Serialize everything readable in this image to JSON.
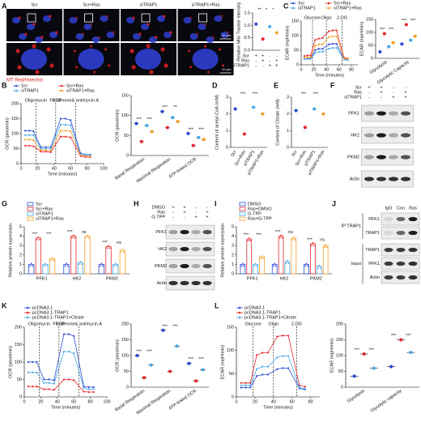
{
  "panel_labels": [
    "A",
    "C",
    "B",
    "D",
    "E",
    "F",
    "G",
    "H",
    "I",
    "J",
    "K",
    "L"
  ],
  "microscopy": {
    "columns": [
      "Scr",
      "Scr+Ras",
      "siTRAP1",
      "siTRAP1+Ras"
    ],
    "scale_bars": [
      "20 µm",
      "10 µm"
    ],
    "stain": "MT Red/Hoechst"
  },
  "blots": [
    {
      "conditions": [
        {
          "name": "Scr",
          "signs": [
            "+",
            "+",
            "-",
            "-"
          ]
        },
        {
          "name": "Ras",
          "signs": [
            "-",
            "+",
            "-",
            "+"
          ]
        },
        {
          "name": "siTRAP1",
          "signs": [
            "-",
            "-",
            "+",
            "+"
          ]
        }
      ],
      "proteins": [
        "PFK1",
        "HK2",
        "PKM2",
        "Actin"
      ]
    },
    {
      "conditions": [
        {
          "name": "DMSO",
          "signs": [
            "+",
            "+",
            "-",
            "-"
          ]
        },
        {
          "name": "Ras",
          "signs": [
            "-",
            "+",
            "-",
            "+"
          ]
        },
        {
          "name": "G-TPP",
          "signs": [
            "-",
            "-",
            "+",
            "+"
          ]
        }
      ],
      "proteins": [
        "PFK1",
        "HK2",
        "PKM2",
        "Actin"
      ]
    },
    {
      "columns": [
        "IgG",
        "Con",
        "Ras"
      ],
      "groups": [
        {
          "name": "IP:TRAP1",
          "proteins": [
            "PFK1",
            "TRAP1"
          ]
        },
        {
          "name": "Input",
          "proteins": [
            "TRAP1",
            "PFK1",
            "Actin"
          ]
        }
      ]
    }
  ],
  "chart_data": [
    {
      "type": "dot",
      "ylabel": "Relative Mito Tracker intensity",
      "ylim": [
        0,
        1.5
      ],
      "yticks": [
        {
          "value": 0,
          "label": "0.0"
        },
        {
          "value": 0.5,
          "label": "0.5"
        },
        {
          "value": 1,
          "label": "1.0"
        },
        {
          "value": 1.5,
          "label": "1.5"
        }
      ],
      "values": [
        1.05,
        0.45,
        0.95,
        0.7
      ],
      "colors": [
        "#2a4bd7",
        "#e8262a",
        "#4aa8e8",
        "#f4a12a"
      ],
      "significance": [
        "**",
        "*",
        "*"
      ],
      "conditions": [
        {
          "name": "Scr",
          "signs": [
            "+",
            "+",
            "-",
            "-"
          ]
        },
        {
          "name": "Ras",
          "signs": [
            "-",
            "+",
            "-",
            "+"
          ]
        },
        {
          "name": "siTRAP1",
          "signs": [
            "-",
            "-",
            "+",
            "+"
          ]
        }
      ]
    },
    {
      "type": "line",
      "ylabel": "ECAR (mpH/min)",
      "xlabel": "Time (minutes)",
      "xlim": [
        0,
        90
      ],
      "xticks": [
        0,
        20,
        40,
        60,
        80
      ],
      "ylim": [
        0,
        150
      ],
      "yticks": [
        0,
        50,
        100,
        150
      ],
      "injections": [
        {
          "label": "Glucose",
          "x": 18
        },
        {
          "label": "Oligo",
          "x": 40
        },
        {
          "label": "2-DG",
          "x": 65
        }
      ],
      "x": [
        5,
        10,
        15,
        22,
        28,
        34,
        44,
        50,
        56,
        68,
        74
      ],
      "series": [
        {
          "name": "Scr",
          "color": "#2a4bd7",
          "values": [
            20,
            22,
            22,
            50,
            55,
            55,
            70,
            72,
            72,
            20,
            18
          ]
        },
        {
          "name": "Scr+Ras",
          "color": "#e8262a",
          "values": [
            30,
            32,
            32,
            85,
            90,
            92,
            115,
            118,
            118,
            25,
            22
          ]
        },
        {
          "name": "siTRAP1",
          "color": "#4aa8e8",
          "values": [
            20,
            20,
            20,
            40,
            45,
            45,
            55,
            58,
            58,
            18,
            16
          ]
        },
        {
          "name": "siTRAP1+Ras",
          "color": "#f4a12a",
          "values": [
            25,
            25,
            25,
            65,
            70,
            70,
            95,
            98,
            98,
            22,
            20
          ]
        }
      ]
    },
    {
      "type": "dot",
      "ylabel": "ECAR (mpH/min)",
      "ylim": [
        0,
        150
      ],
      "yticks": [
        0,
        50,
        100,
        150
      ],
      "categories": [
        "Glycolysis",
        "Glycolytic Capacity"
      ],
      "series": [
        {
          "color": "#2a4bd7",
          "values": [
            25,
            55
          ]
        },
        {
          "color": "#e8262a",
          "values": [
            95,
            130
          ]
        },
        {
          "color": "#4aa8e8",
          "values": [
            45,
            70
          ]
        },
        {
          "color": "#f4a12a",
          "values": [
            60,
            85
          ]
        }
      ],
      "significance": [
        [
          "***",
          "***"
        ],
        [
          "***",
          "***"
        ]
      ]
    },
    {
      "type": "line",
      "ylabel": "OCR (pmol/min)",
      "xlabel": "Time (minutes)",
      "xlim": [
        0,
        100
      ],
      "xticks": [
        0,
        20,
        40,
        60,
        80,
        100
      ],
      "ylim": [
        0,
        200
      ],
      "yticks": [
        0,
        50,
        100,
        150,
        200
      ],
      "injections": [
        {
          "label": "Oligomycin",
          "x": 18
        },
        {
          "label": "FCCP",
          "x": 42
        },
        {
          "label": "Rotenone& antimycin A",
          "x": 66
        }
      ],
      "x": [
        5,
        10,
        15,
        24,
        30,
        36,
        48,
        54,
        60,
        72,
        78,
        84
      ],
      "series": [
        {
          "name": "Scr",
          "color": "#2a4bd7",
          "values": [
            110,
            110,
            108,
            55,
            55,
            55,
            150,
            150,
            145,
            35,
            30,
            30
          ]
        },
        {
          "name": "Scr+Ras",
          "color": "#e8262a",
          "values": [
            60,
            60,
            58,
            40,
            40,
            38,
            90,
            90,
            88,
            25,
            22,
            22
          ]
        },
        {
          "name": "siTRAP1",
          "color": "#4aa8e8",
          "values": [
            95,
            95,
            95,
            50,
            50,
            50,
            130,
            130,
            128,
            30,
            28,
            28
          ]
        },
        {
          "name": "siTRAP1+Ras",
          "color": "#f4a12a",
          "values": [
            80,
            80,
            78,
            45,
            45,
            44,
            110,
            110,
            108,
            28,
            25,
            25
          ]
        }
      ]
    },
    {
      "type": "dot",
      "ylabel": "OCR (pmol/min)",
      "ylim": [
        0,
        150
      ],
      "yticks": [
        0,
        50,
        100,
        150
      ],
      "categories": [
        "Basal Respiration",
        "Maximal Respiration",
        "ATP-linked OCR"
      ],
      "series": [
        {
          "color": "#2a4bd7",
          "values": [
            80,
            110,
            55
          ]
        },
        {
          "color": "#e8262a",
          "values": [
            35,
            70,
            25
          ]
        },
        {
          "color": "#4aa8e8",
          "values": [
            75,
            95,
            45
          ]
        },
        {
          "color": "#f4a12a",
          "values": [
            60,
            85,
            40
          ]
        }
      ],
      "significance": [
        [
          "***",
          "***"
        ],
        [
          "***",
          "**"
        ],
        [
          "***",
          "***"
        ]
      ]
    },
    {
      "type": "dot",
      "ylabel": "Content of acetyl-CoA (mM)",
      "ylim": [
        0,
        3
      ],
      "yticks": [
        0,
        1,
        2,
        3
      ],
      "categories": [
        "Scr",
        "Scr+Ras",
        "siTRAP1",
        "siTRAP1+Ras"
      ],
      "values": [
        2.3,
        0.8,
        2.4,
        2.0
      ],
      "colors": [
        "#2a4bd7",
        "#e8262a",
        "#4aa8e8",
        "#f4a12a"
      ],
      "significance": [
        "***",
        "***"
      ]
    },
    {
      "type": "dot",
      "ylabel": "Content of Citrate (mM)",
      "ylim": [
        0,
        3
      ],
      "yticks": [
        0,
        1,
        2,
        3
      ],
      "categories": [
        "Scr",
        "Scr+Ras",
        "siTRAP1",
        "siTRAP1+Ras"
      ],
      "values": [
        2.2,
        1.2,
        2.3,
        2.0
      ],
      "colors": [
        "#2a4bd7",
        "#e8262a",
        "#4aa8e8",
        "#f4a12a"
      ],
      "significance": [
        "***",
        "***"
      ]
    },
    {
      "type": "bar",
      "ylabel": "Relative protein expression",
      "ylim": [
        0,
        5
      ],
      "yticks": [
        0,
        1,
        2,
        3,
        4,
        5
      ],
      "categories": [
        "PFK1",
        "HK2",
        "PKM2"
      ],
      "series": [
        {
          "name": "Scr",
          "color": "#2a4bd7",
          "values": [
            1,
            1,
            1
          ]
        },
        {
          "name": "Scr+Ras",
          "color": "#e8262a",
          "values": [
            3.8,
            4.0,
            2.9
          ]
        },
        {
          "name": "siTRAP1",
          "color": "#4aa8e8",
          "values": [
            1.0,
            1.2,
            1.0
          ]
        },
        {
          "name": "siTRAP1+Ras",
          "color": "#f4a12a",
          "values": [
            1.6,
            4.0,
            2.5
          ]
        }
      ],
      "significance": [
        [
          "***",
          "***"
        ],
        [
          "***",
          "ns"
        ],
        [
          "***",
          "ns"
        ]
      ]
    },
    {
      "type": "bar",
      "ylabel": "Relative protein expression",
      "ylim": [
        0,
        5
      ],
      "yticks": [
        0,
        1,
        2,
        3,
        4,
        5
      ],
      "categories": [
        "PFK1",
        "HK2",
        "PKM2"
      ],
      "series": [
        {
          "name": "DMSO",
          "color": "#2a4bd7",
          "values": [
            1,
            1,
            1
          ]
        },
        {
          "name": "Ras+DMSO",
          "color": "#e8262a",
          "values": [
            3.7,
            4.0,
            3.2
          ]
        },
        {
          "name": "G-TPP",
          "color": "#4aa8e8",
          "values": [
            1.0,
            1.3,
            0.8
          ]
        },
        {
          "name": "Ras+G-TPP",
          "color": "#f4a12a",
          "values": [
            1.8,
            3.8,
            3.0
          ]
        }
      ],
      "significance": [
        [
          "***",
          "***"
        ],
        [
          "***",
          "ns"
        ],
        [
          "***",
          "ns"
        ]
      ]
    },
    {
      "type": "line",
      "ylabel": "OCR (pmol/min)",
      "xlabel": "Time (minutes)",
      "xlim": [
        0,
        100
      ],
      "xticks": [
        0,
        20,
        40,
        60,
        80,
        100
      ],
      "ylim": [
        0,
        200
      ],
      "yticks": [
        0,
        50,
        100,
        150,
        200
      ],
      "injections": [
        {
          "label": "Oligomycin",
          "x": 18
        },
        {
          "label": "FCCP",
          "x": 42
        },
        {
          "label": "Rotenone& antimycin A",
          "x": 66
        }
      ],
      "x": [
        5,
        10,
        15,
        24,
        30,
        36,
        48,
        54,
        60,
        72,
        78,
        84
      ],
      "series": [
        {
          "name": "pcDNA3.1",
          "color": "#2a4bd7",
          "values": [
            100,
            100,
            100,
            50,
            50,
            48,
            180,
            180,
            175,
            30,
            28,
            28
          ]
        },
        {
          "name": "pcDNA3.1-TRAP1",
          "color": "#e8262a",
          "values": [
            30,
            30,
            30,
            22,
            22,
            20,
            50,
            50,
            48,
            15,
            14,
            14
          ]
        },
        {
          "name": "pcDNA3.1-TRAP1+Citrate",
          "color": "#4aa8e8",
          "values": [
            70,
            70,
            70,
            40,
            40,
            38,
            130,
            130,
            125,
            25,
            22,
            22
          ]
        }
      ]
    },
    {
      "type": "dot",
      "ylabel": "OCR (pmol/min)",
      "ylim": [
        0,
        200
      ],
      "yticks": [
        0,
        50,
        100,
        150,
        200
      ],
      "categories": [
        "Basal Respiration",
        "Maximal Respiration",
        "ATP-linked OCR"
      ],
      "series": [
        {
          "color": "#2a4bd7",
          "values": [
            100,
            180,
            75
          ]
        },
        {
          "color": "#e8262a",
          "values": [
            30,
            50,
            20
          ]
        },
        {
          "color": "#4aa8e8",
          "values": [
            70,
            130,
            55
          ]
        }
      ],
      "significance": [
        [
          "***",
          "***"
        ],
        [
          "***",
          "***"
        ],
        [
          "***",
          "***"
        ]
      ]
    },
    {
      "type": "line",
      "ylabel": "ECAR (mpH/min)",
      "xlabel": "Time (minutes)",
      "xlim": [
        0,
        90
      ],
      "xticks": [
        0,
        20,
        40,
        60,
        80
      ],
      "ylim": [
        0,
        150
      ],
      "yticks": [
        0,
        50,
        100,
        150
      ],
      "injections": [
        {
          "label": "Glucose",
          "x": 18
        },
        {
          "label": "Oligo",
          "x": 40
        },
        {
          "label": "2-DG",
          "x": 65
        }
      ],
      "x": [
        5,
        10,
        15,
        22,
        28,
        34,
        44,
        50,
        56,
        68,
        74
      ],
      "series": [
        {
          "name": "pcDNA3.1",
          "color": "#2a4bd7",
          "values": [
            20,
            20,
            20,
            45,
            48,
            48,
            60,
            62,
            62,
            18,
            16
          ]
        },
        {
          "name": "pcDNA3.1-TRAP1",
          "color": "#e8262a",
          "values": [
            30,
            30,
            30,
            90,
            95,
            95,
            130,
            132,
            132,
            25,
            22
          ]
        },
        {
          "name": "pcDNA3.1-TRAP1+Citrate",
          "color": "#4aa8e8",
          "values": [
            25,
            25,
            25,
            60,
            65,
            65,
            85,
            88,
            88,
            20,
            18
          ]
        }
      ]
    },
    {
      "type": "dot",
      "ylabel": "ECAR (mpH/min)",
      "ylim": [
        0,
        200
      ],
      "yticks": [
        0,
        50,
        100,
        150,
        200
      ],
      "categories": [
        "Glycolysis",
        "Glycolytic capacity"
      ],
      "series": [
        {
          "color": "#2a4bd7",
          "values": [
            35,
            65
          ]
        },
        {
          "color": "#e8262a",
          "values": [
            105,
            150
          ]
        },
        {
          "color": "#4aa8e8",
          "values": [
            60,
            110
          ]
        }
      ],
      "significance": [
        [
          "***",
          "***"
        ],
        [
          "***",
          "***"
        ]
      ]
    }
  ]
}
